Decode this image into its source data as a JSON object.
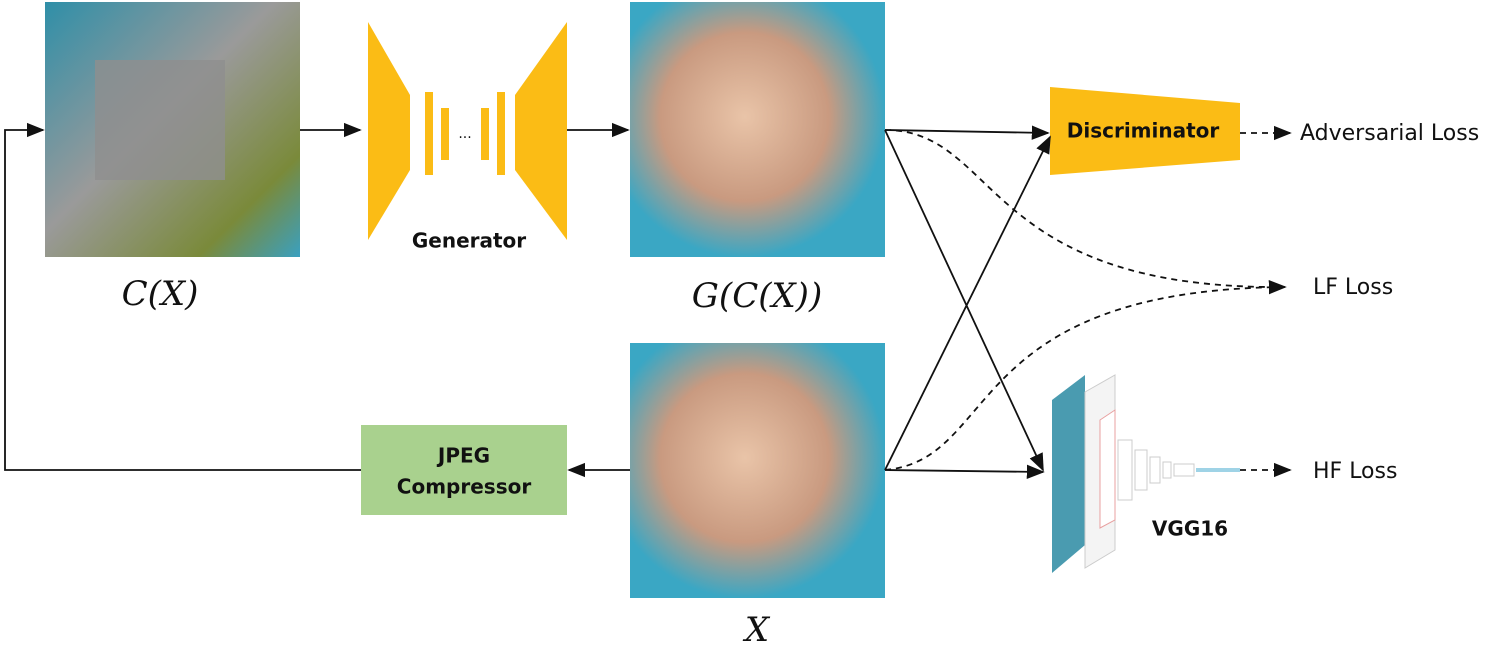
{
  "nodes": {
    "compressed_image": {
      "label": "C(X)"
    },
    "generator": {
      "label": "Generator",
      "ellipsis": "..."
    },
    "generated_image": {
      "label": "G(C(X))"
    },
    "original_image": {
      "label": "X"
    },
    "jpeg_compressor": {
      "label_line1": "JPEG",
      "label_line2": "Compressor"
    },
    "discriminator": {
      "label": "Discriminator"
    },
    "vgg16": {
      "label": "VGG16"
    }
  },
  "losses": {
    "adversarial": "Adversarial Loss",
    "lf": "LF Loss",
    "hf": "HF Loss"
  }
}
